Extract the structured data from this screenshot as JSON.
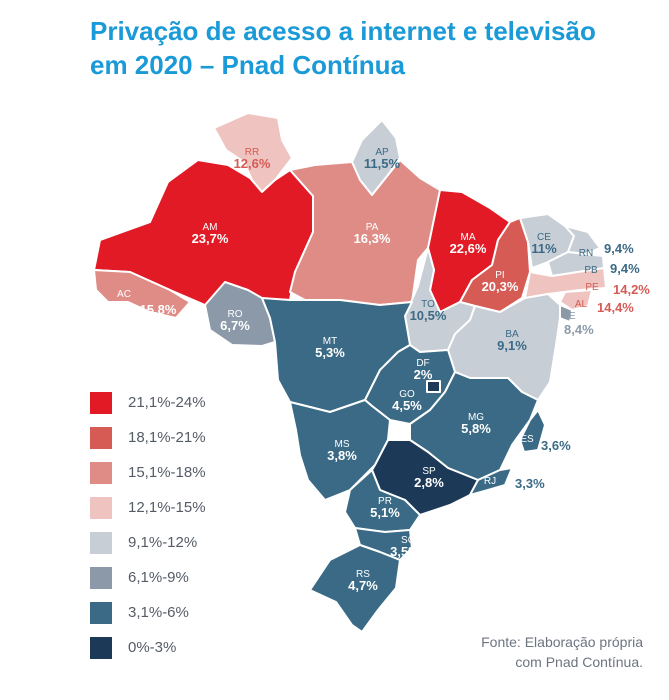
{
  "title_line1": "Privação de acesso a internet e televisão",
  "title_line2": "em 2020 – Pnad Contínua",
  "legend": [
    {
      "label": "21,1%-24%",
      "color": "#e11a25"
    },
    {
      "label": "18,1%-21%",
      "color": "#d65b55"
    },
    {
      "label": "15,1%-18%",
      "color": "#df8c87"
    },
    {
      "label": "12,1%-15%",
      "color": "#efc3bf"
    },
    {
      "label": "9,1%-12%",
      "color": "#c8ced6"
    },
    {
      "label": "6,1%-9%",
      "color": "#8b99a8"
    },
    {
      "label": "3,1%-6%",
      "color": "#3a6a85"
    },
    {
      "label": "0%-3%",
      "color": "#1c3a57"
    }
  ],
  "states": {
    "RR": {
      "abbr": "RR",
      "value": "12,6%"
    },
    "AP": {
      "abbr": "AP",
      "value": "11,5%"
    },
    "AM": {
      "abbr": "AM",
      "value": "23,7%"
    },
    "PA": {
      "abbr": "PA",
      "value": "16,3%"
    },
    "MA": {
      "abbr": "MA",
      "value": "22,6%"
    },
    "CE": {
      "abbr": "CE",
      "value": "11%"
    },
    "RN": {
      "abbr": "RN",
      "value": "9,4%"
    },
    "PB": {
      "abbr": "PB",
      "value": "9,4%"
    },
    "PE": {
      "abbr": "PE",
      "value": "14,2%"
    },
    "AL": {
      "abbr": "AL",
      "value": "14,4%"
    },
    "SE": {
      "abbr": "SE",
      "value": "8,4%"
    },
    "PI": {
      "abbr": "PI",
      "value": "20,3%"
    },
    "AC": {
      "abbr": "AC",
      "value": "15,8%"
    },
    "RO": {
      "abbr": "RO",
      "value": "6,7%"
    },
    "TO": {
      "abbr": "TO",
      "value": "10,5%"
    },
    "BA": {
      "abbr": "BA",
      "value": "9,1%"
    },
    "MT": {
      "abbr": "MT",
      "value": "5,3%"
    },
    "DF": {
      "abbr": "DF",
      "value": "2%"
    },
    "GO": {
      "abbr": "GO",
      "value": "4,5%"
    },
    "MG": {
      "abbr": "MG",
      "value": "5,8%"
    },
    "ES": {
      "abbr": "ES",
      "value": "3,6%"
    },
    "MS": {
      "abbr": "MS",
      "value": "3,8%"
    },
    "SP": {
      "abbr": "SP",
      "value": "2,8%"
    },
    "RJ": {
      "abbr": "RJ",
      "value": "3,3%"
    },
    "PR": {
      "abbr": "PR",
      "value": "5,1%"
    },
    "SC": {
      "abbr": "SC",
      "value": "3,5%"
    },
    "RS": {
      "abbr": "RS",
      "value": "4,7%"
    }
  },
  "source_line1": "Fonte: Elaboração própria",
  "source_line2": "com Pnad Contínua."
}
